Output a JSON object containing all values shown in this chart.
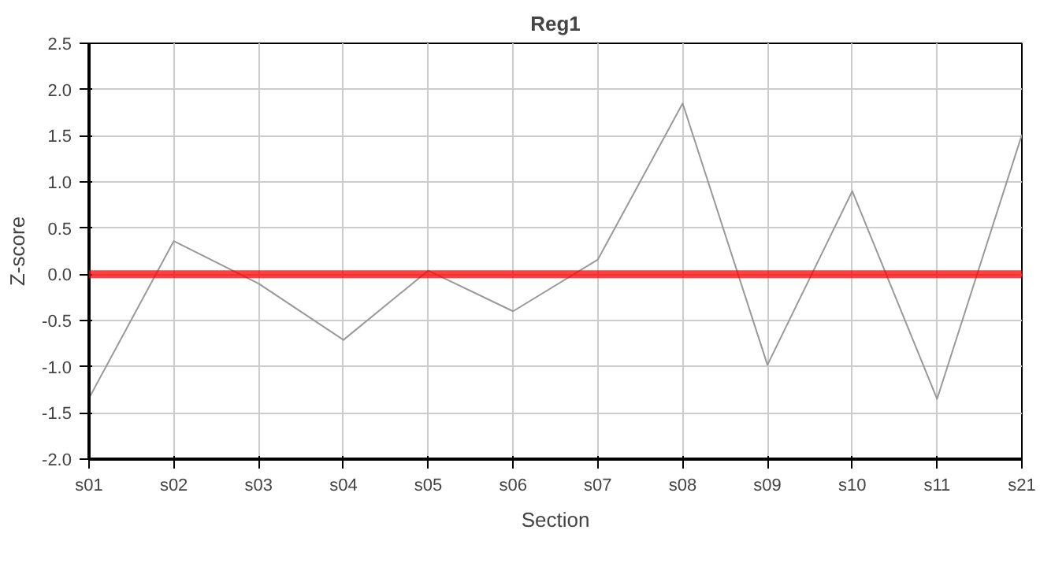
{
  "chart_data": {
    "type": "line",
    "title": "Reg1",
    "xlabel": "Section",
    "ylabel": "Z-score",
    "categories": [
      "s01",
      "s02",
      "s03",
      "s04",
      "s05",
      "s06",
      "s07",
      "s08",
      "s09",
      "s10",
      "s11",
      "s21"
    ],
    "series": [
      {
        "color": "#999999",
        "values": [
          -1.34,
          0.36,
          -0.1,
          -0.71,
          0.04,
          -0.4,
          0.16,
          1.85,
          -0.98,
          0.9,
          -1.35,
          1.51
        ]
      }
    ],
    "ylim": [
      -2.0,
      2.5
    ],
    "yticks": [
      {
        "value": -2.0,
        "label": "-2.0"
      },
      {
        "value": -1.5,
        "label": "-1.5"
      },
      {
        "value": -1.0,
        "label": "-1.0"
      },
      {
        "value": -0.5,
        "label": "-0.5"
      },
      {
        "value": 0.0,
        "label": "0.0"
      },
      {
        "value": 0.5,
        "label": "0.5"
      },
      {
        "value": 1.0,
        "label": "1.0"
      },
      {
        "value": 1.5,
        "label": "1.5"
      },
      {
        "value": 2.0,
        "label": "2.0"
      },
      {
        "value": 2.5,
        "label": "2.5"
      }
    ],
    "ref_lines": [
      {
        "axis": "y",
        "value": 0.0,
        "label": null,
        "color": "#ff0000"
      }
    ],
    "grid": true,
    "marker": "none",
    "line_style": "solid"
  }
}
